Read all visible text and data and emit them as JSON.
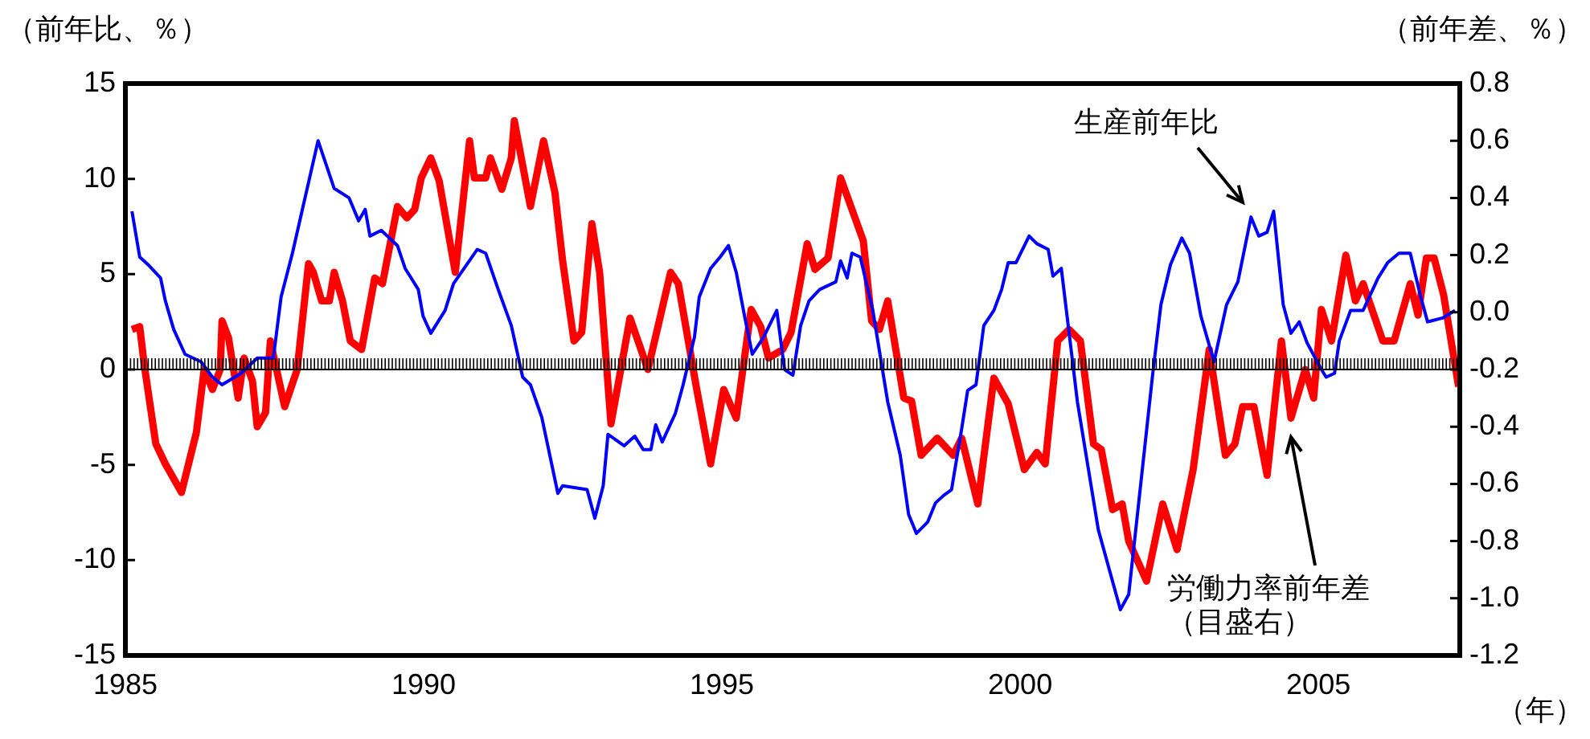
{
  "chart_data": {
    "type": "line",
    "xlabel": "（年）",
    "ylabel": "（前年比、％）",
    "y2label": "（前年差、％）",
    "xlim": [
      1985,
      2007.37
    ],
    "xticks": [
      1985,
      1990,
      1995,
      2000,
      2005
    ],
    "ylim": [
      -15,
      15
    ],
    "yticks": [
      -15,
      -10,
      -5,
      0,
      5,
      10,
      15
    ],
    "y2lim": [
      -1.2,
      0.8
    ],
    "y2ticks": [
      {
        "value": -1.2,
        "label": "-1.2"
      },
      {
        "value": -1,
        "label": "-1.0"
      },
      {
        "value": -0.8,
        "label": "-0.8"
      },
      {
        "value": -0.6,
        "label": "-0.6"
      },
      {
        "value": -0.4,
        "label": "-0.4"
      },
      {
        "value": -0.2,
        "label": "-0.2"
      },
      {
        "value": 0,
        "label": "0.0"
      },
      {
        "value": 0.2,
        "label": "0.2"
      },
      {
        "value": 0.4,
        "label": "0.4"
      },
      {
        "value": 0.6,
        "label": "0.6"
      },
      {
        "value": 0.8,
        "label": "0.8"
      }
    ],
    "grid": false,
    "legend": false,
    "ref_lines": [
      {
        "axis": "y",
        "value": 0,
        "color": "#000000"
      }
    ],
    "series": [
      {
        "name": "生産前年比",
        "color": "#0000ff",
        "x": [
          1985.11,
          1985.24,
          1985.38,
          1985.59,
          1985.67,
          1985.81,
          1986.0,
          1986.27,
          1986.46,
          1986.62,
          1986.94,
          1987.21,
          1987.48,
          1987.61,
          1987.8,
          1987.96,
          1988.23,
          1988.5,
          1988.75,
          1988.91,
          1989.02,
          1989.1,
          1989.29,
          1989.56,
          1989.69,
          1989.91,
          1989.99,
          1990.12,
          1990.36,
          1990.5,
          1990.9,
          1991.04,
          1991.25,
          1991.47,
          1991.66,
          1991.79,
          1991.98,
          1992.25,
          1992.33,
          1992.74,
          1992.87,
          1993.01,
          1993.09,
          1993.36,
          1993.54,
          1993.68,
          1993.81,
          1993.89,
          1994.0,
          1994.22,
          1994.35,
          1994.54,
          1994.62,
          1994.81,
          1994.97,
          1995.11,
          1995.24,
          1995.38,
          1995.51,
          1995.7,
          1995.92,
          1996.05,
          1996.19,
          1996.32,
          1996.46,
          1996.64,
          1996.91,
          1996.99,
          1997.1,
          1997.18,
          1997.32,
          1997.53,
          1997.78,
          1997.99,
          1998.13,
          1998.26,
          1998.45,
          1998.58,
          1998.72,
          1998.85,
          1999.02,
          1999.12,
          1999.26,
          1999.39,
          1999.56,
          1999.69,
          1999.8,
          1999.93,
          2000.15,
          2000.28,
          2000.47,
          2000.55,
          2000.69,
          2000.74,
          2000.96,
          2001.31,
          2001.68,
          2001.82,
          2002.22,
          2002.36,
          2002.52,
          2002.71,
          2002.84,
          2003.03,
          2003.25,
          2003.46,
          2003.65,
          2003.87,
          2004.0,
          2004.14,
          2004.25,
          2004.41,
          2004.54,
          2004.68,
          2004.81,
          2005.05,
          2005.13,
          2005.27,
          2005.35,
          2005.54,
          2005.75,
          2006.0,
          2006.16,
          2006.35,
          2006.54,
          2006.7,
          2006.83,
          2007.08,
          2007.29
        ],
        "values": [
          8.3,
          5.9,
          5.5,
          4.8,
          3.6,
          2.1,
          0.8,
          0.4,
          -0.4,
          -0.8,
          -0.2,
          0.6,
          0.6,
          3.8,
          6.1,
          8.3,
          12.0,
          9.5,
          9.0,
          7.8,
          8.4,
          7.0,
          7.3,
          6.5,
          5.3,
          4.2,
          2.8,
          1.9,
          3.1,
          4.5,
          6.3,
          6.1,
          4.2,
          2.3,
          -0.4,
          -0.8,
          -2.5,
          -6.5,
          -6.1,
          -6.3,
          -7.8,
          -6.1,
          -3.4,
          -4.0,
          -3.5,
          -4.2,
          -4.2,
          -2.9,
          -3.8,
          -2.3,
          -0.8,
          1.7,
          3.8,
          5.3,
          5.9,
          6.5,
          5.1,
          2.8,
          0.8,
          1.7,
          3.1,
          0.0,
          -0.3,
          2.3,
          3.6,
          4.2,
          4.6,
          5.7,
          4.8,
          6.1,
          5.9,
          3.1,
          -1.7,
          -4.5,
          -7.6,
          -8.6,
          -8.0,
          -7.0,
          -6.6,
          -6.3,
          -3.1,
          -1.1,
          -0.8,
          2.3,
          3.1,
          4.2,
          5.6,
          5.6,
          7.0,
          6.6,
          6.3,
          4.9,
          5.3,
          4.0,
          -1.7,
          -8.4,
          -12.6,
          -11.8,
          -0.3,
          3.4,
          5.5,
          6.9,
          6.1,
          2.8,
          0.4,
          3.4,
          4.6,
          8.0,
          7.0,
          7.2,
          8.3,
          3.4,
          1.9,
          2.5,
          1.4,
          0.0,
          -0.4,
          -0.2,
          1.5,
          3.1,
          3.1,
          4.8,
          5.6,
          6.1,
          6.1,
          4.0,
          2.5,
          2.7,
          3.1
        ]
      },
      {
        "name": "労働力率前年差（目盛右）",
        "color": "#ff0000",
        "axis": "y2",
        "x": [
          1985.11,
          1985.24,
          1985.32,
          1985.51,
          1985.67,
          1985.94,
          1986.19,
          1986.32,
          1986.46,
          1986.59,
          1986.62,
          1986.73,
          1986.89,
          1986.99,
          1987.13,
          1987.21,
          1987.35,
          1987.43,
          1987.67,
          1987.88,
          1988.07,
          1988.15,
          1988.29,
          1988.42,
          1988.5,
          1988.64,
          1988.77,
          1988.96,
          1989.18,
          1989.31,
          1989.56,
          1989.72,
          1989.85,
          1989.96,
          1990.12,
          1990.26,
          1990.53,
          1990.77,
          1990.85,
          1991.04,
          1991.12,
          1991.31,
          1991.47,
          1991.52,
          1991.79,
          1992.01,
          1992.2,
          1992.33,
          1992.52,
          1992.65,
          1992.82,
          1992.95,
          1993.14,
          1993.46,
          1993.76,
          1994.14,
          1994.27,
          1994.57,
          1994.81,
          1995.03,
          1995.24,
          1995.49,
          1995.65,
          1995.78,
          1996.02,
          1996.16,
          1996.43,
          1996.56,
          1996.78,
          1996.99,
          1997.37,
          1997.51,
          1997.64,
          1997.78,
          1998.05,
          1998.18,
          1998.34,
          1998.61,
          1998.88,
          1999.02,
          1999.29,
          1999.56,
          1999.8,
          2000.07,
          2000.28,
          2000.42,
          2000.63,
          2000.82,
          2001.01,
          2001.23,
          2001.36,
          2001.55,
          2001.71,
          2001.82,
          2002.12,
          2002.39,
          2002.63,
          2002.9,
          2003.17,
          2003.44,
          2003.6,
          2003.73,
          2003.92,
          2004.14,
          2004.38,
          2004.54,
          2004.78,
          2004.92,
          2005.05,
          2005.22,
          2005.46,
          2005.62,
          2005.75,
          2006.08,
          2006.27,
          2006.54,
          2006.67,
          2006.81,
          2006.94,
          2007.1,
          2007.35
        ],
        "values": [
          -0.06,
          -0.05,
          -0.19,
          -0.46,
          -0.53,
          -0.63,
          -0.42,
          -0.2,
          -0.27,
          -0.2,
          -0.03,
          -0.09,
          -0.3,
          -0.16,
          -0.24,
          -0.4,
          -0.35,
          -0.1,
          -0.33,
          -0.2,
          0.17,
          0.14,
          0.04,
          0.04,
          0.14,
          0.04,
          -0.1,
          -0.13,
          0.12,
          0.1,
          0.37,
          0.33,
          0.36,
          0.47,
          0.54,
          0.46,
          0.14,
          0.6,
          0.47,
          0.47,
          0.54,
          0.43,
          0.54,
          0.67,
          0.37,
          0.6,
          0.42,
          0.18,
          -0.1,
          -0.07,
          0.31,
          0.14,
          -0.39,
          -0.02,
          -0.2,
          0.14,
          0.1,
          -0.26,
          -0.53,
          -0.27,
          -0.37,
          0.01,
          -0.05,
          -0.16,
          -0.13,
          -0.07,
          0.24,
          0.15,
          0.19,
          0.47,
          0.25,
          -0.03,
          -0.06,
          0.04,
          -0.3,
          -0.31,
          -0.5,
          -0.44,
          -0.5,
          -0.44,
          -0.67,
          -0.23,
          -0.32,
          -0.55,
          -0.49,
          -0.53,
          -0.1,
          -0.06,
          -0.1,
          -0.46,
          -0.48,
          -0.69,
          -0.67,
          -0.8,
          -0.94,
          -0.67,
          -0.83,
          -0.55,
          -0.13,
          -0.5,
          -0.46,
          -0.33,
          -0.33,
          -0.57,
          -0.1,
          -0.37,
          -0.2,
          -0.3,
          0.01,
          -0.1,
          0.2,
          0.04,
          0.1,
          -0.1,
          -0.1,
          0.1,
          -0.01,
          0.19,
          0.19,
          0.06,
          -0.26
        ]
      }
    ]
  }
}
